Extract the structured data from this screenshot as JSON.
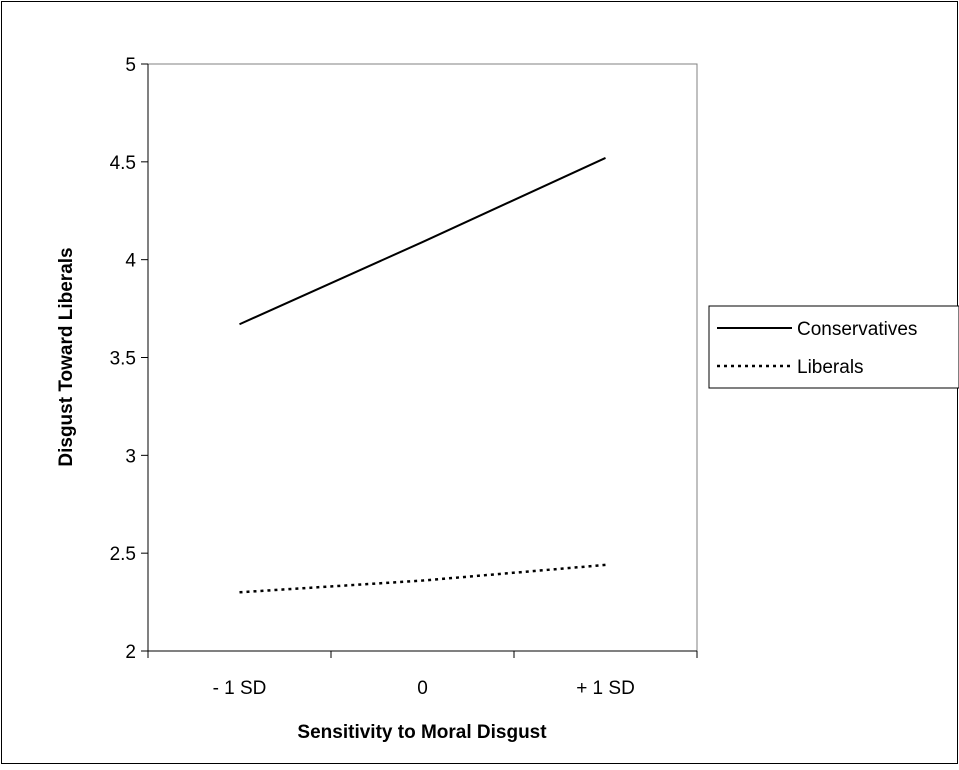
{
  "chart_data": {
    "type": "line",
    "title": "",
    "xlabel": "Sensitivity to Moral Disgust",
    "ylabel": "Disgust Toward Liberals",
    "categories": [
      "- 1 SD",
      "0",
      "+ 1 SD"
    ],
    "ylim": [
      2,
      5
    ],
    "yticks": [
      "2",
      "2.5",
      "3",
      "3.5",
      "4",
      "4.5",
      "5"
    ],
    "grid": false,
    "legend_position": "right",
    "series": [
      {
        "name": "Conservatives",
        "style": "solid",
        "color": "#000000",
        "values": [
          3.67,
          4.09,
          4.52
        ]
      },
      {
        "name": "Liberals",
        "style": "dotted",
        "color": "#000000",
        "values": [
          2.3,
          2.36,
          2.44
        ]
      }
    ]
  }
}
